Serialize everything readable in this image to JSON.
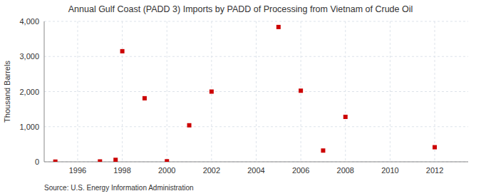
{
  "chart_data": {
    "type": "scatter",
    "title": "Annual Gulf Coast (PADD 3) Imports by PADD of Processing from Vietnam of Crude Oil",
    "y_label": "Thousand Barrels",
    "source": "Source: U.S. Energy Information Administration",
    "x": [
      1995,
      1997,
      1997.7,
      1998,
      1999,
      2000,
      2001,
      2002,
      2005,
      2006,
      2007,
      2008,
      2012
    ],
    "values": [
      5,
      10,
      55,
      3150,
      1810,
      15,
      1040,
      2000,
      3840,
      2025,
      320,
      1280,
      415
    ],
    "color": "#cc0000",
    "marker": "square",
    "xlim": [
      1994.5,
      2013.5
    ],
    "xticks": [
      1996,
      1998,
      2000,
      2002,
      2004,
      2006,
      2008,
      2010,
      2012
    ],
    "ylim": [
      0,
      4000
    ],
    "yticks": [
      0,
      {
        "value": 1000,
        "label": "1,000"
      },
      {
        "value": 2000,
        "label": "2,000"
      },
      {
        "value": 3000,
        "label": "3,000"
      },
      {
        "value": 4000,
        "label": "4,000"
      }
    ],
    "grid": true
  }
}
